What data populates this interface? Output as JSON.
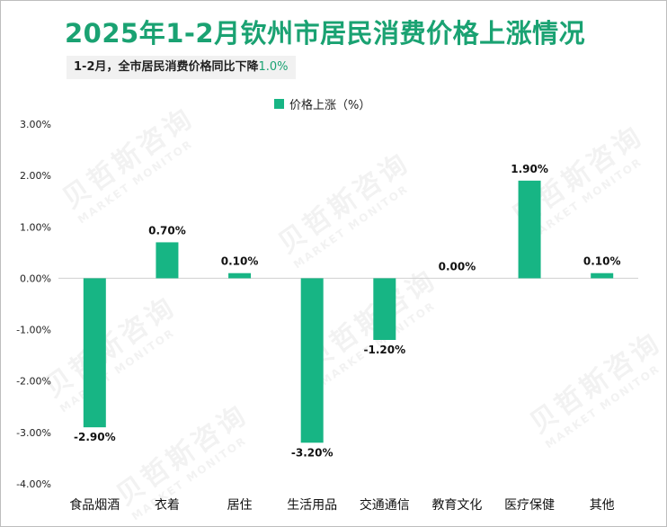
{
  "title": "2025年1-2月钦州市居民消费价格上涨情况",
  "subtitle": {
    "prefix": "1-2月，全市居民消费价格同比下降",
    "value": "1.0%"
  },
  "watermark": {
    "cn": "贝哲斯咨询",
    "en": "MARKET MONITOR"
  },
  "chart_data": {
    "type": "bar",
    "title": "2025年1-2月钦州市居民消费价格上涨情况",
    "categories": [
      "食品烟酒",
      "衣着",
      "居住",
      "生活用品",
      "交通通信",
      "教育文化",
      "医疗保健",
      "其他"
    ],
    "series": [
      {
        "name": "价格上涨（%）",
        "values": [
          -2.9,
          0.7,
          0.1,
          -3.2,
          -1.2,
          0.0,
          1.9,
          0.1
        ],
        "labels": [
          "-2.90%",
          "0.70%",
          "0.10%",
          "-3.20%",
          "-1.20%",
          "0.00%",
          "1.90%",
          "0.10%"
        ]
      }
    ],
    "yticks": [
      3,
      2,
      1,
      0,
      -1,
      -2,
      -3,
      -4
    ],
    "ytick_labels": [
      "3.00%",
      "2.00%",
      "1.00%",
      "0.00%",
      "-1.00%",
      "-2.00%",
      "-3.00%",
      "-4.00%"
    ],
    "ylim": [
      -4,
      3
    ],
    "legend_position": "top-center",
    "bar_color": "#17b584",
    "grid": false
  }
}
